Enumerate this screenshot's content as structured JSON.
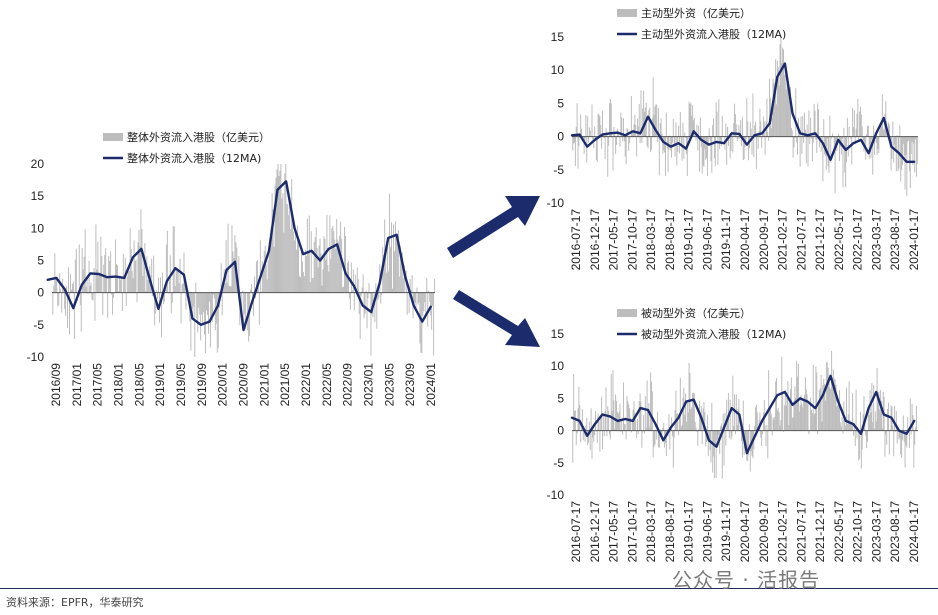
{
  "footer": {
    "source": "资料来源：EPFR，华泰研究"
  },
  "watermark": "公众号 · 活报告",
  "colors": {
    "navy": "#1b2b6b",
    "bar": "#bdbdbd",
    "arrow": "#1b2b6b"
  },
  "chart_data": [
    {
      "type": "line",
      "legend": [
        "整体外资流入港股（亿美元）",
        "整体外资流入港股（12MA)"
      ],
      "ylim": [
        -10,
        20
      ],
      "yticks": [
        -10,
        -5,
        0,
        5,
        10,
        15,
        20
      ],
      "xticks": [
        "2016/09",
        "2017/01",
        "2017/05",
        "2018/01",
        "2018/05",
        "2019/01",
        "2019/05",
        "2019/09",
        "2020/01",
        "2020/09",
        "2021/01",
        "2021/05",
        "2022/01",
        "2022/05",
        "2022/09",
        "2023/01",
        "2023/05",
        "2023/09",
        "2024/01"
      ],
      "series": [
        {
          "name": "整体外资流入港股（12MA)",
          "x": [
            "2016-07",
            "2016-09",
            "2016-11",
            "2017-01",
            "2017-03",
            "2017-05",
            "2017-07",
            "2017-09",
            "2017-11",
            "2018-01",
            "2018-03",
            "2018-05",
            "2018-07",
            "2018-09",
            "2018-11",
            "2019-01",
            "2019-03",
            "2019-05",
            "2019-07",
            "2019-09",
            "2019-11",
            "2020-01",
            "2020-03",
            "2020-05",
            "2020-07",
            "2020-09",
            "2020-11",
            "2021-01",
            "2021-03",
            "2021-05",
            "2021-07",
            "2021-09",
            "2021-11",
            "2022-01",
            "2022-03",
            "2022-05",
            "2022-07",
            "2022-09",
            "2022-11",
            "2023-01",
            "2023-03",
            "2023-05",
            "2023-07",
            "2023-09",
            "2023-11",
            "2024-01"
          ],
          "y": [
            2.0,
            2.3,
            0.5,
            -2.4,
            1.2,
            3.0,
            2.9,
            2.4,
            2.5,
            2.3,
            5.5,
            6.8,
            2.0,
            -2.5,
            1.8,
            3.8,
            2.8,
            -4.0,
            -5.0,
            -4.5,
            -2.0,
            3.5,
            4.8,
            -5.8,
            -1.5,
            2.5,
            6.5,
            16.0,
            17.3,
            10.0,
            6.0,
            6.5,
            5.0,
            6.8,
            7.5,
            3.0,
            1.0,
            -2.0,
            -3.0,
            1.5,
            8.5,
            9.0,
            2.5,
            -2.0,
            -4.5,
            -2.2
          ]
        }
      ]
    },
    {
      "type": "line",
      "legend": [
        "主动型外资（亿美元）",
        "主动型外资流入港股（12MA)"
      ],
      "ylim": [
        -10,
        15
      ],
      "yticks": [
        -10,
        -5,
        0,
        5,
        10,
        15
      ],
      "xticks": [
        "2016-07-17",
        "2016-12-17",
        "2017-05-17",
        "2017-10-17",
        "2018-03-17",
        "2018-08-17",
        "2019-01-17",
        "2019-06-17",
        "2019-11-17",
        "2020-04-17",
        "2020-09-17",
        "2021-02-17",
        "2021-07-17",
        "2021-12-17",
        "2022-05-17",
        "2022-10-17",
        "2023-03-17",
        "2023-08-17",
        "2024-01-17"
      ],
      "series": [
        {
          "name": "主动型外资流入港股（12MA)",
          "x": [
            "2016-07",
            "2016-09",
            "2016-11",
            "2017-01",
            "2017-03",
            "2017-05",
            "2017-07",
            "2017-09",
            "2017-11",
            "2018-01",
            "2018-03",
            "2018-05",
            "2018-07",
            "2018-09",
            "2018-11",
            "2019-01",
            "2019-03",
            "2019-05",
            "2019-07",
            "2019-09",
            "2019-11",
            "2020-01",
            "2020-03",
            "2020-05",
            "2020-07",
            "2020-09",
            "2020-11",
            "2021-01",
            "2021-03",
            "2021-05",
            "2021-07",
            "2021-09",
            "2021-11",
            "2022-01",
            "2022-03",
            "2022-05",
            "2022-07",
            "2022-09",
            "2022-11",
            "2023-01",
            "2023-03",
            "2023-05",
            "2023-07",
            "2023-09",
            "2023-11",
            "2024-01"
          ],
          "y": [
            0.2,
            0.3,
            -1.5,
            -0.5,
            0.3,
            0.5,
            0.6,
            0.2,
            0.8,
            0.5,
            3.0,
            1.0,
            -0.8,
            -1.5,
            -1.0,
            -1.8,
            0.8,
            -0.5,
            -1.2,
            -0.8,
            -1.0,
            0.5,
            0.4,
            -1.2,
            0.2,
            0.5,
            2.0,
            9.0,
            11.0,
            3.5,
            0.5,
            0.2,
            0.5,
            -1.0,
            -3.5,
            -0.5,
            -2.0,
            -1.0,
            -0.5,
            -2.5,
            0.5,
            2.8,
            -1.5,
            -2.5,
            -3.8,
            -3.8
          ]
        }
      ]
    },
    {
      "type": "line",
      "legend": [
        "被动型外资（亿美元）",
        "被动型外资流入港股（12MA)"
      ],
      "ylim": [
        -10,
        15
      ],
      "yticks": [
        -10,
        -5,
        0,
        5,
        10,
        15
      ],
      "xticks": [
        "2016-07-17",
        "2016-12-17",
        "2017-05-17",
        "2017-10-17",
        "2018-03-17",
        "2018-08-17",
        "2019-01-17",
        "2019-06-17",
        "2019-11-17",
        "2020-04-17",
        "2020-09-17",
        "2021-02-17",
        "2021-07-17",
        "2021-12-17",
        "2022-05-17",
        "2022-10-17",
        "2023-03-17",
        "2023-08-17",
        "2024-01-17"
      ],
      "series": [
        {
          "name": "被动型外资流入港股（12MA)",
          "x": [
            "2016-07",
            "2016-09",
            "2016-11",
            "2017-01",
            "2017-03",
            "2017-05",
            "2017-07",
            "2017-09",
            "2017-11",
            "2018-01",
            "2018-03",
            "2018-05",
            "2018-07",
            "2018-09",
            "2018-11",
            "2019-01",
            "2019-03",
            "2019-05",
            "2019-07",
            "2019-09",
            "2019-11",
            "2020-01",
            "2020-03",
            "2020-05",
            "2020-07",
            "2020-09",
            "2020-11",
            "2021-01",
            "2021-03",
            "2021-05",
            "2021-07",
            "2021-09",
            "2021-11",
            "2022-01",
            "2022-03",
            "2022-05",
            "2022-07",
            "2022-09",
            "2022-11",
            "2023-01",
            "2023-03",
            "2023-05",
            "2023-07",
            "2023-09",
            "2023-11",
            "2024-01"
          ],
          "y": [
            2.0,
            1.5,
            -0.8,
            1.0,
            2.5,
            2.2,
            1.5,
            1.8,
            1.5,
            3.5,
            3.2,
            1.0,
            -1.5,
            0.5,
            2.0,
            4.5,
            4.8,
            2.0,
            -1.5,
            -2.5,
            0.5,
            3.5,
            2.5,
            -3.5,
            -1.0,
            1.5,
            3.5,
            5.5,
            6.0,
            4.0,
            5.0,
            4.5,
            3.5,
            5.5,
            8.5,
            4.5,
            1.5,
            1.0,
            -0.5,
            3.5,
            6.0,
            2.5,
            2.0,
            0.0,
            -0.5,
            1.5
          ]
        }
      ]
    }
  ]
}
